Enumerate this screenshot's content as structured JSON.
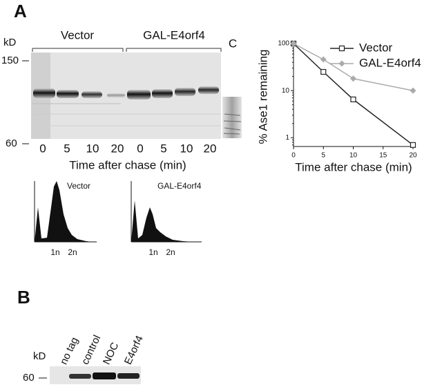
{
  "panel_a": {
    "label": "A",
    "gel": {
      "unit": "kD",
      "markers": [
        "150",
        "60"
      ],
      "groups": [
        "Vector",
        "GAL-E4orf4"
      ],
      "control_lane": "C",
      "lanes": [
        "0",
        "5",
        "10",
        "20",
        "0",
        "5",
        "10",
        "20"
      ],
      "xlabel": "Time after chase (min)"
    },
    "histograms": [
      {
        "label": "Vector",
        "ticks": [
          "1n",
          "2n"
        ]
      },
      {
        "label": "GAL-E4orf4",
        "ticks": [
          "1n",
          "2n"
        ]
      }
    ]
  },
  "chart_data": {
    "type": "line",
    "x": [
      0,
      5,
      10,
      20
    ],
    "series": [
      {
        "name": "Vector",
        "color": "#222222",
        "marker": "square",
        "values": [
          100,
          25,
          6.5,
          0.7
        ]
      },
      {
        "name": "GAL-E4orf4",
        "color": "#aaaaaa",
        "marker": "diamond",
        "values": [
          100,
          46,
          18,
          10
        ]
      }
    ],
    "xlim": [
      0,
      20
    ],
    "xticks": [
      0,
      5,
      10,
      15,
      20
    ],
    "ylim": [
      0.65,
      100
    ],
    "yticks": [
      1,
      10,
      100
    ],
    "yscale": "log",
    "xlabel": "Time after chase (min)",
    "ylabel": "% Ase1 remaining",
    "legend": "top-right"
  },
  "panel_b": {
    "label": "B",
    "lanes": [
      "no tag",
      "control",
      "NOC",
      "E4orf4"
    ],
    "unit": "kD",
    "marker": "60"
  }
}
